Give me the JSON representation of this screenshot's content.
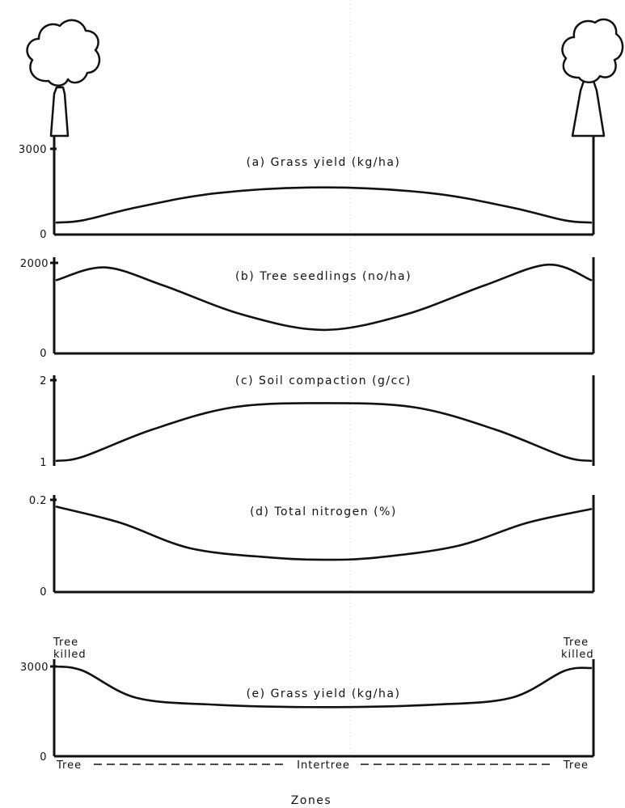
{
  "chart_data": [
    {
      "type": "line",
      "title": "(a) Grass yield (kg/ha)",
      "ylim": [
        0,
        3000
      ],
      "y_ticks": [
        "0",
        "3000"
      ],
      "x": [
        0,
        0.05,
        0.15,
        0.3,
        0.5,
        0.7,
        0.85,
        0.95,
        1
      ],
      "values": [
        420,
        500,
        950,
        1450,
        1650,
        1450,
        950,
        500,
        420
      ]
    },
    {
      "type": "line",
      "title": "(b) Tree seedlings (no/ha)",
      "ylim": [
        0,
        2000
      ],
      "y_ticks": [
        "0",
        "2000"
      ],
      "x": [
        0,
        0.09,
        0.2,
        0.35,
        0.5,
        0.65,
        0.8,
        0.92,
        1
      ],
      "values": [
        1620,
        1900,
        1500,
        850,
        520,
        850,
        1500,
        1960,
        1620
      ]
    },
    {
      "type": "line",
      "title": "(c) Soil compaction (g/cc)",
      "ylim": [
        1,
        2
      ],
      "y_ticks": [
        "1",
        "2"
      ],
      "x": [
        0,
        0.05,
        0.18,
        0.33,
        0.5,
        0.67,
        0.82,
        0.95,
        1
      ],
      "values": [
        1.05,
        1.1,
        1.42,
        1.68,
        1.73,
        1.68,
        1.42,
        1.1,
        1.05
      ]
    },
    {
      "type": "line",
      "title": "(d) Total nitrogen (%)",
      "ylim": [
        0,
        0.2
      ],
      "y_ticks": [
        "0",
        "0.2"
      ],
      "x": [
        0,
        0.12,
        0.25,
        0.4,
        0.5,
        0.6,
        0.75,
        0.88,
        1
      ],
      "values": [
        0.185,
        0.15,
        0.095,
        0.075,
        0.07,
        0.075,
        0.1,
        0.15,
        0.18
      ]
    },
    {
      "type": "line",
      "title": "(e) Grass yield (kg/ha)",
      "ylim": [
        0,
        3000
      ],
      "y_ticks": [
        "0",
        "3000"
      ],
      "x": [
        0,
        0.05,
        0.15,
        0.3,
        0.5,
        0.7,
        0.85,
        0.95,
        1
      ],
      "values": [
        3000,
        2850,
        1950,
        1720,
        1640,
        1720,
        1950,
        2850,
        2950
      ],
      "annotations": {
        "left": [
          "Tree",
          "killed"
        ],
        "right": [
          "Tree",
          "killed"
        ]
      }
    }
  ],
  "x_axis": {
    "left_label": "Tree",
    "center_label": "Intertree",
    "right_label": "Tree",
    "title": "Zones"
  },
  "icons": {
    "left": "tree-icon",
    "right": "tree-icon"
  },
  "colors": {
    "ink": "#111111",
    "background": "#ffffff"
  }
}
